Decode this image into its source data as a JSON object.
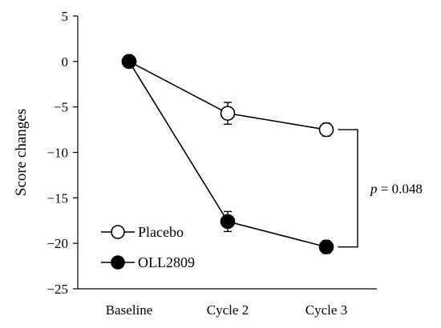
{
  "chart_data": {
    "type": "line",
    "title": "",
    "xlabel": "",
    "ylabel": "Score changes",
    "categories": [
      "Baseline",
      "Cycle 2",
      "Cycle 3"
    ],
    "ylim": [
      -25,
      5
    ],
    "yticks": [
      5,
      0,
      -5,
      -10,
      -15,
      -20,
      -25
    ],
    "ytick_labels": [
      "5",
      "0",
      "−5",
      "−10",
      "−15",
      "−20",
      "−25"
    ],
    "grid": false,
    "legend_position": "bottom-left",
    "series": [
      {
        "name": "Placebo",
        "values": [
          0,
          -5.7,
          -7.5
        ],
        "error": [
          0,
          1.2,
          0.7
        ],
        "marker": "open-circle",
        "color": "#000000"
      },
      {
        "name": "OLL2809",
        "values": [
          0,
          -17.6,
          -20.4
        ],
        "error": [
          0,
          1.1,
          0.7
        ],
        "marker": "filled-circle",
        "color": "#000000"
      }
    ],
    "annotation": {
      "p_symbol": "p",
      "p_rest": " = 0.048",
      "bracket_between": [
        "Placebo",
        "OLL2809"
      ],
      "at_category": "Cycle 3"
    }
  }
}
